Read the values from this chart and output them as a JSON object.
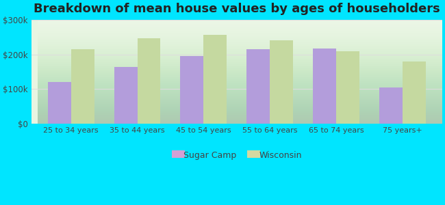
{
  "title": "Breakdown of mean house values by ages of householders",
  "categories": [
    "25 to 34 years",
    "35 to 44 years",
    "45 to 54 years",
    "55 to 64 years",
    "65 to 74 years",
    "75 years+"
  ],
  "sugar_camp": [
    120000,
    165000,
    195000,
    215000,
    218000,
    105000
  ],
  "wisconsin": [
    215000,
    248000,
    258000,
    242000,
    210000,
    180000
  ],
  "sugar_camp_color": "#b39ddb",
  "wisconsin_color": "#c5d9a0",
  "background_outer": "#00e5ff",
  "background_inner_bottom": "#c8e6c0",
  "background_inner_top": "#f0fdf0",
  "ylim": [
    0,
    300000
  ],
  "yticks": [
    0,
    100000,
    200000,
    300000
  ],
  "ytick_labels": [
    "$0",
    "$100k",
    "$200k",
    "$300k"
  ],
  "legend_sugar_camp": "Sugar Camp",
  "legend_wisconsin": "Wisconsin",
  "title_fontsize": 13,
  "bar_width": 0.35,
  "grid_color": "#dddddd",
  "tick_color": "#444444",
  "legend_marker_sugar": "#d4a0d4",
  "legend_marker_wisconsin": "#d4d8a0"
}
